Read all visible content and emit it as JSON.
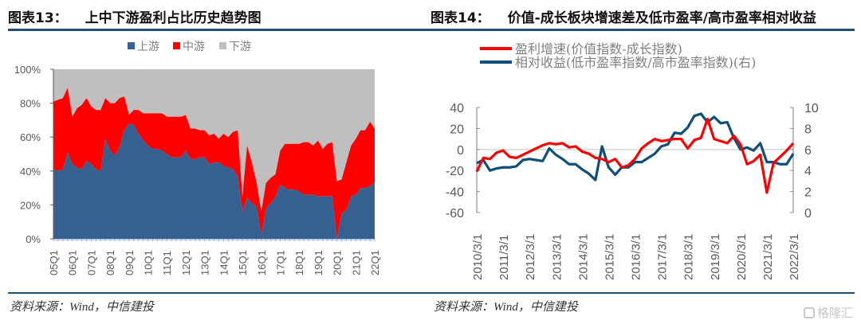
{
  "figures": {
    "left": {
      "number": "图表13：",
      "title": "上中下游盈利占比历史趋势图",
      "source": "资料来源：Wind，中信建投"
    },
    "right": {
      "number": "图表14：",
      "title": "价值-成长板块增速差及低市盈率/高市盈率相对收益",
      "source": "资料来源：Wind，中信建投"
    }
  },
  "watermark": {
    "text": "格隆汇",
    "icon": "gelonghui-logo-icon"
  },
  "colors": {
    "upstream": "#36608f",
    "midstream": "#ff0000",
    "downstream": "#bfbfbf",
    "growth_line": "#ff0000",
    "relative_line": "#0e4f7c",
    "rule": "#1f4e79"
  },
  "chart_data": [
    {
      "type": "area",
      "stacked": true,
      "title": "上中下游盈利占比历史趋势图",
      "xlabel": "",
      "ylabel": "",
      "ylim": [
        0,
        100
      ],
      "y_unit": "%",
      "y_ticks": [
        "0%",
        "20%",
        "40%",
        "60%",
        "80%",
        "100%"
      ],
      "x_tick_labels": [
        "05Q1",
        "06Q1",
        "07Q1",
        "08Q1",
        "09Q1",
        "10Q1",
        "11Q1",
        "12Q1",
        "13Q1",
        "14Q1",
        "15Q1",
        "16Q1",
        "17Q1",
        "18Q1",
        "19Q1",
        "20Q1",
        "21Q1",
        "22Q1"
      ],
      "legend": {
        "placement": "top-center",
        "entries": [
          "上游",
          "中游",
          "下游"
        ]
      },
      "x": [
        "05Q1",
        "05Q2",
        "05Q3",
        "05Q4",
        "06Q1",
        "06Q2",
        "06Q3",
        "06Q4",
        "07Q1",
        "07Q2",
        "07Q3",
        "07Q4",
        "08Q1",
        "08Q2",
        "08Q3",
        "08Q4",
        "09Q1",
        "09Q2",
        "09Q3",
        "09Q4",
        "10Q1",
        "10Q2",
        "10Q3",
        "10Q4",
        "11Q1",
        "11Q2",
        "11Q3",
        "11Q4",
        "12Q1",
        "12Q2",
        "12Q3",
        "12Q4",
        "13Q1",
        "13Q2",
        "13Q3",
        "13Q4",
        "14Q1",
        "14Q2",
        "14Q3",
        "14Q4",
        "15Q1",
        "15Q2",
        "15Q3",
        "15Q4",
        "16Q1",
        "16Q2",
        "16Q3",
        "16Q4",
        "17Q1",
        "17Q2",
        "17Q3",
        "17Q4",
        "18Q1",
        "18Q2",
        "18Q3",
        "18Q4",
        "19Q1",
        "19Q2",
        "19Q3",
        "19Q4",
        "20Q1",
        "20Q2",
        "20Q3",
        "20Q4",
        "21Q1",
        "21Q2",
        "21Q3",
        "21Q4",
        "22Q1"
      ],
      "series": [
        {
          "name": "上游",
          "values": [
            41,
            40,
            41,
            51,
            44,
            42,
            41,
            46,
            44,
            41,
            40,
            59,
            52,
            49,
            54,
            64,
            68,
            67,
            62,
            58,
            55,
            53,
            53,
            52,
            50,
            48,
            48,
            48,
            52,
            47,
            47,
            48,
            48,
            44,
            45,
            45,
            43,
            42,
            41,
            37,
            16,
            24,
            21,
            19,
            2,
            18,
            21,
            25,
            32,
            30,
            29,
            29,
            28,
            26,
            26,
            26,
            25,
            25,
            25,
            25,
            0,
            15,
            17,
            25,
            26,
            30,
            30,
            31,
            34
          ]
        },
        {
          "name": "中游",
          "values": [
            40,
            42,
            42,
            38,
            28,
            35,
            38,
            37,
            34,
            35,
            36,
            24,
            28,
            31,
            29,
            20,
            5,
            9,
            14,
            16,
            19,
            21,
            21,
            22,
            22,
            24,
            24,
            24,
            21,
            18,
            18,
            16,
            16,
            17,
            17,
            14,
            19,
            18,
            22,
            27,
            9,
            31,
            24,
            14,
            14,
            15,
            15,
            13,
            20,
            26,
            27,
            27,
            28,
            31,
            31,
            29,
            33,
            28,
            31,
            32,
            34,
            20,
            28,
            30,
            33,
            34,
            34,
            38,
            31
          ]
        },
        {
          "name": "下游",
          "values": [
            19,
            18,
            17,
            11,
            28,
            23,
            21,
            17,
            22,
            24,
            24,
            17,
            20,
            20,
            17,
            16,
            27,
            24,
            24,
            26,
            26,
            26,
            26,
            26,
            28,
            28,
            28,
            28,
            27,
            35,
            35,
            36,
            36,
            39,
            38,
            41,
            38,
            40,
            37,
            36,
            75,
            45,
            55,
            67,
            84,
            67,
            64,
            62,
            48,
            44,
            44,
            44,
            44,
            43,
            43,
            45,
            42,
            47,
            44,
            43,
            66,
            65,
            55,
            45,
            41,
            36,
            36,
            31,
            35
          ]
        }
      ]
    },
    {
      "type": "line",
      "title": "价值-成长板块增速差及低市盈率/高市盈率相对收益",
      "xlabel": "",
      "ylabel": "",
      "ylim": [
        -60,
        40
      ],
      "y_ticks": [
        "-60",
        "-40",
        "-20",
        "0",
        "20",
        "40"
      ],
      "y2lim": [
        0,
        10
      ],
      "y2_ticks": [
        "0",
        "2",
        "4",
        "6",
        "8",
        "10"
      ],
      "x_tick_labels": [
        "2010/3/1",
        "2011/3/1",
        "2012/3/1",
        "2013/3/1",
        "2014/3/1",
        "2015/3/1",
        "2016/3/1",
        "2017/3/1",
        "2018/3/1",
        "2019/3/1",
        "2020/3/1",
        "2021/3/1",
        "2022/3/1"
      ],
      "legend": {
        "placement": "top-left",
        "entries": [
          "盈利增速(价值指数-成长指数)",
          "相对收益(低市盈率指数/高市盈率指数)(右)"
        ]
      },
      "x_start": "2010/3/1",
      "x_frequency": "quarterly",
      "series": [
        {
          "name": "盈利增速(价值指数-成长指数)",
          "axis": "left",
          "values": [
            -21,
            -8,
            -9,
            -3,
            -1,
            -7,
            -8,
            -5,
            -2,
            1,
            4,
            6,
            5,
            6,
            2,
            3,
            -2,
            -4,
            -8,
            -9,
            -12,
            -9,
            -17,
            -15,
            -9,
            1,
            6,
            10,
            8,
            9,
            10,
            10,
            1,
            9,
            11,
            29,
            10,
            8,
            6,
            13,
            5,
            -14,
            -11,
            -5,
            -41,
            -13,
            -7,
            -1,
            6
          ]
        },
        {
          "name": "相对收益(低市盈率指数/高市盈率指数)(右)",
          "axis": "right",
          "values": [
            4.7,
            5.0,
            4.0,
            4.2,
            4.3,
            4.3,
            4.4,
            5.0,
            5.1,
            5.0,
            4.9,
            6.1,
            5.5,
            5.1,
            4.6,
            4.6,
            4.1,
            3.7,
            3.1,
            6.3,
            4.3,
            3.6,
            4.3,
            4.3,
            4.8,
            4.8,
            5.2,
            5.6,
            6.3,
            6.5,
            7.6,
            7.5,
            8.1,
            9.2,
            9.4,
            8.6,
            9.1,
            8.5,
            8.6,
            7.1,
            6.0,
            6.2,
            5.9,
            6.6,
            4.8,
            4.8,
            4.6,
            4.6,
            5.6
          ]
        }
      ]
    }
  ]
}
